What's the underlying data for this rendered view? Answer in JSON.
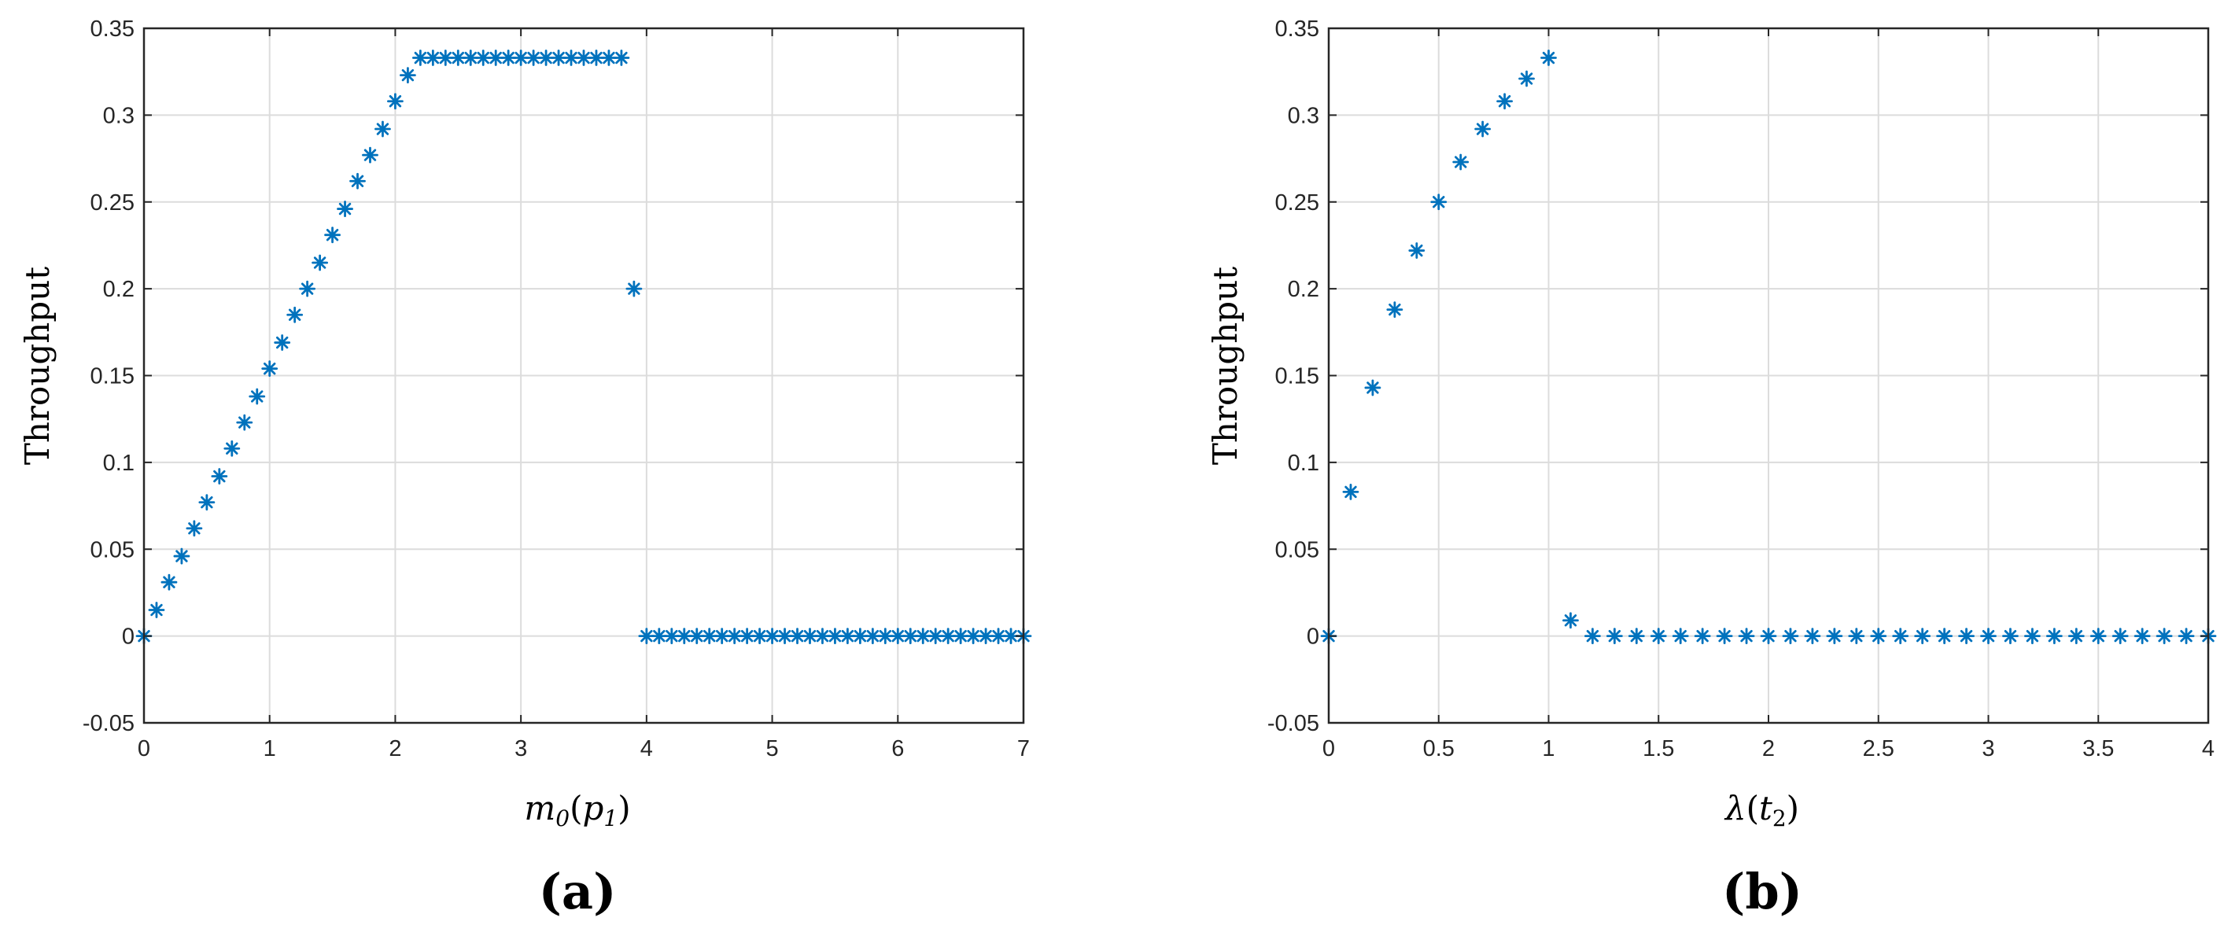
{
  "colors": {
    "marker": "#0072BD",
    "grid": "#dcdcdc",
    "axis": "#262626"
  },
  "chart_data": [
    {
      "type": "scatter",
      "panel_label": "(a)",
      "xlabel": "m0(p1)",
      "ylabel": "Throughput",
      "xlim": [
        0,
        7
      ],
      "ylim": [
        -0.05,
        0.35
      ],
      "grid": true,
      "marker": "asterisk",
      "xticks": [
        0,
        1,
        2,
        3,
        4,
        5,
        6,
        7
      ],
      "xtick_labels": [
        "0",
        "1",
        "2",
        "3",
        "4",
        "5",
        "6",
        "7"
      ],
      "yticks": [
        -0.05,
        0,
        0.05,
        0.1,
        0.15,
        0.2,
        0.25,
        0.3,
        0.35
      ],
      "ytick_labels": [
        "-0.05",
        "0",
        "0.05",
        "0.1",
        "0.15",
        "0.2",
        "0.25",
        "0.3",
        "0.35"
      ],
      "x": [
        0,
        0.1,
        0.2,
        0.3,
        0.4,
        0.5,
        0.6,
        0.7,
        0.8,
        0.9,
        1.0,
        1.1,
        1.2,
        1.3,
        1.4,
        1.5,
        1.6,
        1.7,
        1.8,
        1.9,
        2.0,
        2.1,
        2.2,
        2.3,
        2.4,
        2.5,
        2.6,
        2.7,
        2.8,
        2.9,
        3.0,
        3.1,
        3.2,
        3.3,
        3.4,
        3.5,
        3.6,
        3.7,
        3.8,
        3.9,
        4.0,
        4.1,
        4.2,
        4.3,
        4.4,
        4.5,
        4.6,
        4.7,
        4.8,
        4.9,
        5.0,
        5.1,
        5.2,
        5.3,
        5.4,
        5.5,
        5.6,
        5.7,
        5.8,
        5.9,
        6.0,
        6.1,
        6.2,
        6.3,
        6.4,
        6.5,
        6.6,
        6.7,
        6.8,
        6.9,
        7.0
      ],
      "y": [
        0,
        0.015,
        0.031,
        0.046,
        0.062,
        0.077,
        0.092,
        0.108,
        0.123,
        0.138,
        0.154,
        0.169,
        0.185,
        0.2,
        0.215,
        0.231,
        0.246,
        0.262,
        0.277,
        0.292,
        0.308,
        0.323,
        0.333,
        0.333,
        0.333,
        0.333,
        0.333,
        0.333,
        0.333,
        0.333,
        0.333,
        0.333,
        0.333,
        0.333,
        0.333,
        0.333,
        0.333,
        0.333,
        0.333,
        0.2,
        0,
        0,
        0,
        0,
        0,
        0,
        0,
        0,
        0,
        0,
        0,
        0,
        0,
        0,
        0,
        0,
        0,
        0,
        0,
        0,
        0,
        0,
        0,
        0,
        0,
        0,
        0,
        0,
        0,
        0,
        0
      ]
    },
    {
      "type": "scatter",
      "panel_label": "(b)",
      "xlabel": "λ(t2)",
      "ylabel": "Throughput",
      "xlim": [
        0,
        4
      ],
      "ylim": [
        -0.05,
        0.35
      ],
      "grid": true,
      "marker": "asterisk",
      "xticks": [
        0,
        0.5,
        1,
        1.5,
        2,
        2.5,
        3,
        3.5,
        4
      ],
      "xtick_labels": [
        "0",
        "0.5",
        "1",
        "1.5",
        "2",
        "2.5",
        "3",
        "3.5",
        "4"
      ],
      "yticks": [
        -0.05,
        0,
        0.05,
        0.1,
        0.15,
        0.2,
        0.25,
        0.3,
        0.35
      ],
      "ytick_labels": [
        "-0.05",
        "0",
        "0.05",
        "0.1",
        "0.15",
        "0.2",
        "0.25",
        "0.3",
        "0.35"
      ],
      "x": [
        0,
        0.1,
        0.2,
        0.3,
        0.4,
        0.5,
        0.6,
        0.7,
        0.8,
        0.9,
        1.0,
        1.1,
        1.2,
        1.3,
        1.4,
        1.5,
        1.6,
        1.7,
        1.8,
        1.9,
        2.0,
        2.1,
        2.2,
        2.3,
        2.4,
        2.5,
        2.6,
        2.7,
        2.8,
        2.9,
        3.0,
        3.1,
        3.2,
        3.3,
        3.4,
        3.5,
        3.6,
        3.7,
        3.8,
        3.9,
        4.0
      ],
      "y": [
        0,
        0.083,
        0.143,
        0.188,
        0.222,
        0.25,
        0.273,
        0.292,
        0.308,
        0.321,
        0.333,
        0.009,
        0,
        0,
        0,
        0,
        0,
        0,
        0,
        0,
        0,
        0,
        0,
        0,
        0,
        0,
        0,
        0,
        0,
        0,
        0,
        0,
        0,
        0,
        0,
        0,
        0,
        0,
        0,
        0,
        0
      ]
    }
  ]
}
